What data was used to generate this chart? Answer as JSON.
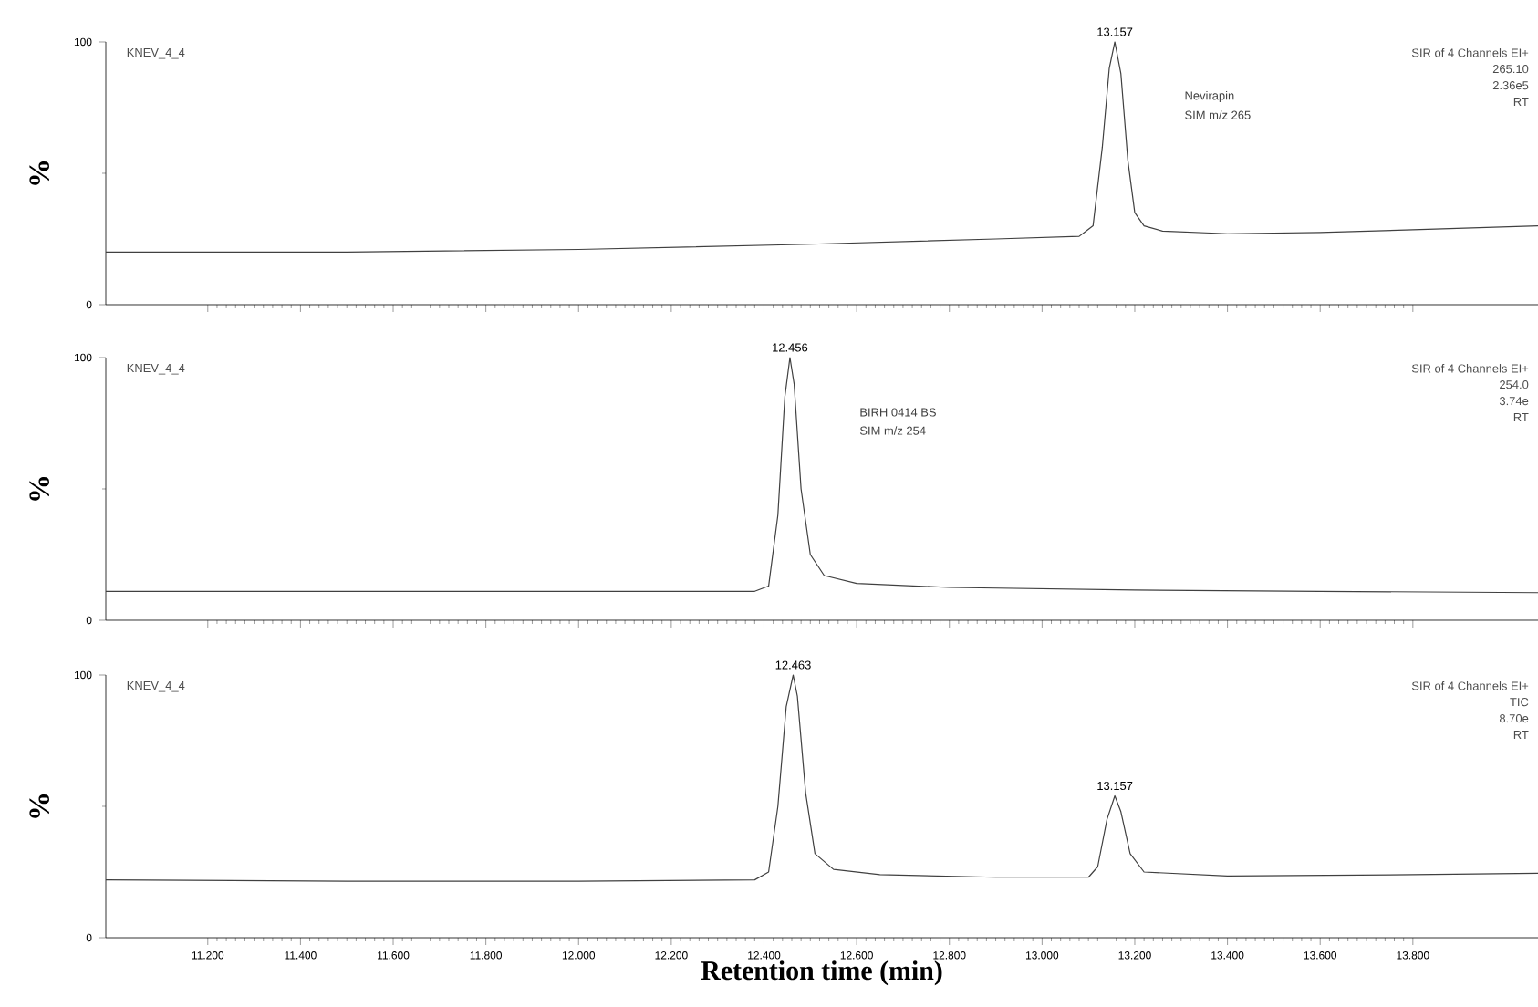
{
  "chart_data": [
    {
      "type": "line",
      "title": "KNEV_4_4",
      "subtitle": "SIR of 4 Channels EI+",
      "ylabel": "%",
      "xlim": [
        10.98,
        14.07
      ],
      "ylim": [
        0,
        100
      ],
      "xticks": [
        11.2,
        11.4,
        11.6,
        11.8,
        12.0,
        12.2,
        12.4,
        12.6,
        12.8,
        13.0,
        13.2,
        13.4,
        13.6,
        13.8
      ],
      "yticks": [
        0,
        100
      ],
      "tick_labels": "y",
      "annotations": [
        "265.10",
        "2.36e5",
        "RT",
        "Nevirapin",
        "SIM m/z 265",
        {
          "text": "13.157",
          "x": 13.157,
          "y": 100
        }
      ],
      "series": [
        {
          "color": "#404040",
          "x": [
            10.98,
            11.5,
            12.0,
            12.5,
            12.9,
            13.08,
            13.11,
            13.13,
            13.145,
            13.157,
            13.17,
            13.185,
            13.2,
            13.22,
            13.26,
            13.4,
            13.6,
            13.8,
            14.07
          ],
          "values": [
            20,
            20,
            21,
            23,
            25,
            26,
            30,
            60,
            90,
            100,
            88,
            55,
            35,
            30,
            28,
            27,
            27.5,
            28.5,
            30
          ]
        }
      ]
    },
    {
      "type": "line",
      "title": "KNEV_4_4",
      "subtitle": "SIR of 4 Channels EI+",
      "ylabel": "%",
      "xlim": [
        10.98,
        14.07
      ],
      "ylim": [
        0,
        100
      ],
      "xticks": [
        11.2,
        11.4,
        11.6,
        11.8,
        12.0,
        12.2,
        12.4,
        12.6,
        12.8,
        13.0,
        13.2,
        13.4,
        13.6,
        13.8
      ],
      "yticks": [
        0,
        100
      ],
      "tick_labels": "y",
      "annotations": [
        "254.0",
        "3.74e",
        "RT",
        "BIRH 0414 BS",
        "SIM m/z 254",
        {
          "text": "12.456",
          "x": 12.456,
          "y": 100
        }
      ],
      "series": [
        {
          "color": "#404040",
          "x": [
            10.98,
            11.5,
            12.0,
            12.38,
            12.41,
            12.43,
            12.445,
            12.456,
            12.465,
            12.48,
            12.5,
            12.53,
            12.6,
            12.8,
            13.2,
            13.6,
            14.07
          ],
          "values": [
            11,
            11,
            11,
            11,
            13,
            40,
            85,
            100,
            90,
            50,
            25,
            17,
            14,
            12.5,
            11.5,
            11,
            10.5
          ]
        }
      ]
    },
    {
      "type": "line",
      "title": "KNEV_4_4",
      "subtitle": "SIR of 4 Channels EI+",
      "ylabel": "%",
      "xlabel": "Retention time (min)",
      "xlim": [
        10.98,
        14.07
      ],
      "ylim": [
        0,
        100
      ],
      "xticks": [
        {
          "value": 11.2,
          "label": "11.200"
        },
        {
          "value": 11.4,
          "label": "11.400"
        },
        {
          "value": 11.6,
          "label": "11.600"
        },
        {
          "value": 11.8,
          "label": "11.800"
        },
        {
          "value": 12.0,
          "label": "12.000"
        },
        {
          "value": 12.2,
          "label": "12.200"
        },
        {
          "value": 12.4,
          "label": "12.400"
        },
        {
          "value": 12.6,
          "label": "12.600"
        },
        {
          "value": 12.8,
          "label": "12.800"
        },
        {
          "value": 13.0,
          "label": "13.000"
        },
        {
          "value": 13.2,
          "label": "13.200"
        },
        {
          "value": 13.4,
          "label": "13.400"
        },
        {
          "value": 13.6,
          "label": "13.600"
        },
        {
          "value": 13.8,
          "label": "13.800"
        }
      ],
      "yticks": [
        0,
        100
      ],
      "annotations": [
        "TIC",
        "8.70e",
        "RT",
        {
          "text": "12.463",
          "x": 12.463,
          "y": 100
        },
        {
          "text": "13.157",
          "x": 13.157,
          "y": 54
        }
      ],
      "series": [
        {
          "color": "#404040",
          "x": [
            10.98,
            11.5,
            12.0,
            12.38,
            12.41,
            12.43,
            12.448,
            12.463,
            12.472,
            12.49,
            12.51,
            12.55,
            12.65,
            12.9,
            13.1,
            13.12,
            13.14,
            13.157,
            13.17,
            13.19,
            13.22,
            13.4,
            13.8,
            14.07
          ],
          "values": [
            22,
            21.5,
            21.5,
            22,
            25,
            50,
            88,
            100,
            92,
            55,
            32,
            26,
            24,
            23,
            23,
            27,
            45,
            54,
            48,
            32,
            25,
            23.5,
            24,
            24.5
          ]
        }
      ]
    }
  ]
}
